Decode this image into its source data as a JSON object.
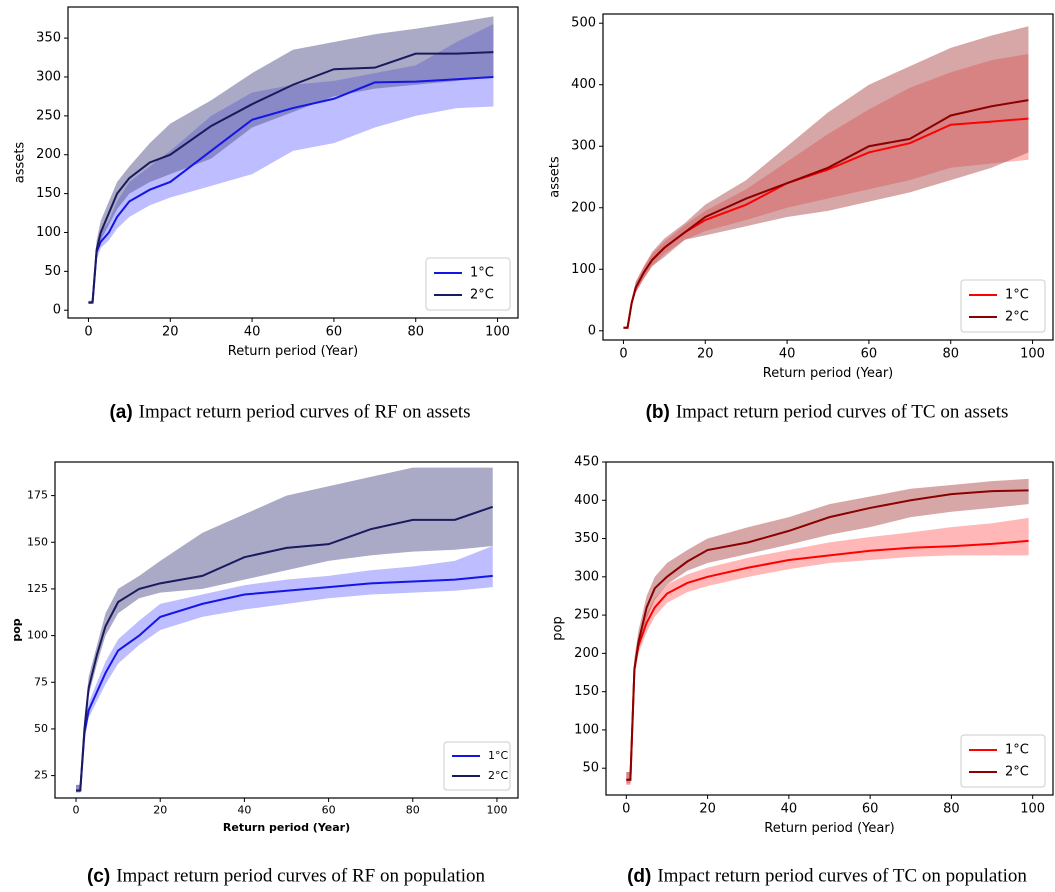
{
  "chart_data": [
    {
      "type": "line",
      "caption_label": "(a)",
      "caption": "Impact return period curves of RF on assets",
      "x_label": "Return period (Year)",
      "y_label": "assets",
      "x": [
        0,
        1,
        2,
        3,
        5,
        7,
        10,
        15,
        20,
        30,
        40,
        50,
        60,
        70,
        80,
        90,
        99
      ],
      "xlim": [
        -5,
        105
      ],
      "xticks": [
        0,
        20,
        40,
        60,
        80,
        100
      ],
      "ylim": [
        -10,
        390
      ],
      "yticks": [
        0,
        50,
        100,
        150,
        200,
        250,
        300,
        350
      ],
      "legend": "lower right",
      "series": [
        {
          "name": "1°C",
          "color": "#1515e8",
          "band_color": "#7b7bff",
          "values": [
            10,
            10,
            75,
            88,
            100,
            120,
            140,
            155,
            165,
            205,
            245,
            260,
            272,
            293,
            294,
            297,
            300
          ],
          "lower": [
            8,
            8,
            65,
            80,
            90,
            105,
            120,
            135,
            145,
            160,
            175,
            205,
            215,
            235,
            250,
            260,
            262
          ],
          "upper": [
            12,
            12,
            85,
            100,
            115,
            140,
            165,
            185,
            205,
            250,
            280,
            290,
            295,
            305,
            315,
            345,
            368
          ]
        },
        {
          "name": "2°C",
          "color": "#1a1a5e",
          "band_color": "#55558f",
          "values": [
            10,
            10,
            78,
            100,
            125,
            150,
            170,
            190,
            200,
            237,
            265,
            290,
            310,
            312,
            330,
            330,
            332
          ],
          "lower": [
            8,
            8,
            70,
            90,
            110,
            130,
            150,
            165,
            175,
            195,
            235,
            255,
            275,
            285,
            290,
            295,
            300
          ],
          "upper": [
            12,
            12,
            90,
            115,
            140,
            165,
            185,
            215,
            240,
            270,
            305,
            335,
            345,
            355,
            362,
            370,
            378
          ]
        }
      ]
    },
    {
      "type": "line",
      "caption_label": "(b)",
      "caption": "Impact return period curves of TC on assets",
      "x_label": "Return period (Year)",
      "y_label": "assets",
      "x": [
        0,
        1,
        2,
        3,
        5,
        7,
        10,
        15,
        20,
        30,
        40,
        50,
        60,
        70,
        80,
        90,
        99
      ],
      "xlim": [
        -5,
        105
      ],
      "xticks": [
        0,
        20,
        40,
        60,
        80,
        100
      ],
      "ylim": [
        -15,
        515
      ],
      "yticks": [
        0,
        100,
        200,
        300,
        400,
        500
      ],
      "legend": "lower right",
      "series": [
        {
          "name": "1°C",
          "color": "#ff0000",
          "band_color": "#ff7070",
          "values": [
            5,
            5,
            45,
            70,
            95,
            115,
            135,
            160,
            180,
            205,
            240,
            262,
            290,
            305,
            335,
            340,
            345
          ],
          "lower": [
            4,
            4,
            40,
            62,
            85,
            105,
            125,
            148,
            162,
            180,
            200,
            215,
            230,
            245,
            265,
            272,
            278
          ],
          "upper": [
            6,
            6,
            50,
            78,
            105,
            125,
            145,
            172,
            195,
            230,
            275,
            320,
            360,
            395,
            420,
            440,
            450
          ]
        },
        {
          "name": "2°C",
          "color": "#8b0000",
          "band_color": "#b05050",
          "values": [
            5,
            5,
            45,
            70,
            95,
            115,
            135,
            160,
            185,
            215,
            240,
            265,
            300,
            312,
            350,
            365,
            375
          ],
          "lower": [
            4,
            4,
            40,
            62,
            85,
            105,
            120,
            148,
            155,
            170,
            185,
            195,
            210,
            225,
            245,
            265,
            290
          ],
          "upper": [
            6,
            6,
            50,
            80,
            105,
            128,
            150,
            175,
            205,
            245,
            300,
            355,
            400,
            430,
            460,
            480,
            495
          ]
        }
      ]
    },
    {
      "type": "line",
      "caption_label": "(c)",
      "caption": "Impact return period curves of RF on population",
      "x_label": "Return period (Year)",
      "y_label": "pop",
      "x": [
        0,
        1,
        2,
        3,
        5,
        7,
        10,
        15,
        20,
        30,
        40,
        50,
        60,
        70,
        80,
        90,
        99
      ],
      "xlim": [
        -5,
        105
      ],
      "xticks": [
        0,
        20,
        40,
        60,
        80,
        100
      ],
      "ylim": [
        13,
        193
      ],
      "yticks": [
        25,
        50,
        75,
        100,
        125,
        150,
        175
      ],
      "legend": "lower right",
      "series": [
        {
          "name": "1°C",
          "color": "#1515e8",
          "band_color": "#7b7bff",
          "values": [
            17,
            17,
            48,
            60,
            70,
            80,
            92,
            100,
            110,
            117,
            122,
            124,
            126,
            128,
            129,
            130,
            132
          ],
          "lower": [
            16,
            16,
            44,
            56,
            65,
            74,
            85,
            95,
            103,
            110,
            114,
            117,
            120,
            122,
            123,
            124,
            126
          ],
          "upper": [
            20,
            20,
            52,
            64,
            75,
            86,
            98,
            108,
            117,
            122,
            127,
            130,
            132,
            135,
            137,
            140,
            148
          ]
        },
        {
          "name": "2°C",
          "color": "#1a1a5e",
          "band_color": "#55558f",
          "values": [
            17,
            17,
            50,
            72,
            90,
            105,
            118,
            125,
            128,
            132,
            142,
            147,
            149,
            157,
            162,
            162,
            169
          ],
          "lower": [
            16,
            16,
            46,
            68,
            85,
            100,
            112,
            120,
            123,
            125,
            130,
            135,
            140,
            143,
            145,
            146,
            148
          ],
          "upper": [
            20,
            20,
            56,
            78,
            95,
            112,
            125,
            132,
            140,
            155,
            165,
            175,
            180,
            185,
            190,
            190,
            190
          ]
        }
      ]
    },
    {
      "type": "line",
      "caption_label": "(d)",
      "caption": "Impact return period curves of TC on population",
      "x_label": "Return period (Year)",
      "y_label": "pop",
      "x": [
        0,
        1,
        2,
        3,
        5,
        7,
        10,
        15,
        20,
        30,
        40,
        50,
        60,
        70,
        80,
        90,
        99
      ],
      "xlim": [
        -5,
        105
      ],
      "xticks": [
        0,
        20,
        40,
        60,
        80,
        100
      ],
      "ylim": [
        15,
        450
      ],
      "yticks": [
        50,
        100,
        150,
        200,
        250,
        300,
        350,
        400,
        450
      ],
      "legend": "lower right",
      "series": [
        {
          "name": "1°C",
          "color": "#ff0000",
          "band_color": "#ff7070",
          "values": [
            35,
            35,
            180,
            210,
            240,
            260,
            278,
            292,
            300,
            312,
            322,
            328,
            334,
            338,
            340,
            343,
            347
          ],
          "lower": [
            28,
            28,
            170,
            200,
            228,
            248,
            266,
            280,
            288,
            300,
            310,
            318,
            322,
            326,
            328,
            328,
            328
          ],
          "upper": [
            45,
            45,
            190,
            222,
            252,
            272,
            290,
            303,
            312,
            325,
            335,
            345,
            352,
            358,
            365,
            370,
            377
          ]
        },
        {
          "name": "2°C",
          "color": "#8b0000",
          "band_color": "#b05050",
          "values": [
            35,
            35,
            180,
            215,
            260,
            285,
            300,
            320,
            335,
            345,
            360,
            378,
            390,
            400,
            408,
            412,
            413
          ],
          "lower": [
            30,
            30,
            170,
            205,
            245,
            270,
            290,
            308,
            318,
            330,
            342,
            355,
            365,
            378,
            385,
            390,
            395
          ],
          "upper": [
            45,
            45,
            195,
            230,
            275,
            300,
            318,
            335,
            350,
            365,
            378,
            395,
            405,
            415,
            420,
            425,
            428
          ]
        }
      ]
    }
  ]
}
